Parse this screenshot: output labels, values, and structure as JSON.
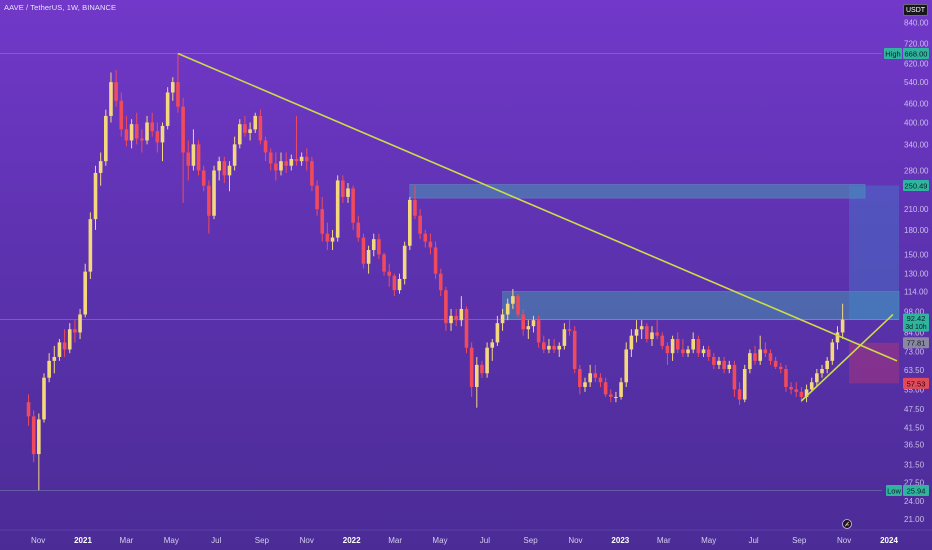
{
  "header": {
    "title": "AAVE / TetherUS, 1W, BINANCE",
    "currency": "USDT"
  },
  "chart_data": {
    "type": "candlestick",
    "symbol": "AAVE / TetherUS",
    "interval": "1W",
    "exchange": "BINANCE",
    "scale": "log",
    "y_ticks": [
      "840.00",
      "720.00",
      "620.00",
      "540.00",
      "460.00",
      "400.00",
      "340.00",
      "280.00",
      "250.00",
      "210.00",
      "180.00",
      "150.00",
      "130.00",
      "114.00",
      "98.00",
      "84.00",
      "73.00",
      "63.50",
      "55.00",
      "47.50",
      "41.50",
      "36.50",
      "31.50",
      "27.50",
      "24.00",
      "21.00"
    ],
    "x_ticks": [
      "Nov",
      "2021",
      "Mar",
      "May",
      "Jul",
      "Sep",
      "Nov",
      "2022",
      "Mar",
      "May",
      "Jul",
      "Sep",
      "Nov",
      "2023",
      "Mar",
      "May",
      "Jul",
      "Sep",
      "Nov",
      "2024"
    ],
    "year_ticks": [
      "2021",
      "2022",
      "2023",
      "2024"
    ],
    "price_labels": {
      "high": {
        "label": "High",
        "value": "668.00"
      },
      "low": {
        "label": "Low",
        "value": "25.94"
      },
      "current": {
        "value": "92.42",
        "countdown": "3d 10h"
      },
      "target": {
        "value": "250.49"
      },
      "marker": {
        "value": "77.81"
      },
      "stop": {
        "value": "57.53"
      }
    },
    "colors": {
      "up": "#f5d87e",
      "down": "#f04a5c",
      "trendline": "#cddc4a",
      "zone": "#3fb8b0",
      "target_zone": "#3c8fd0",
      "stop_zone": "#e03a5c"
    },
    "candles": [
      {
        "t": "2020-10-19",
        "o": 50,
        "h": 53,
        "l": 42,
        "c": 45
      },
      {
        "t": "2020-10-26",
        "o": 45,
        "h": 47,
        "l": 32,
        "c": 34
      },
      {
        "t": "2020-11-02",
        "o": 34,
        "h": 46,
        "l": 26,
        "c": 44
      },
      {
        "t": "2020-11-09",
        "o": 44,
        "h": 62,
        "l": 43,
        "c": 60
      },
      {
        "t": "2020-11-16",
        "o": 60,
        "h": 72,
        "l": 58,
        "c": 68
      },
      {
        "t": "2020-11-23",
        "o": 68,
        "h": 76,
        "l": 62,
        "c": 70
      },
      {
        "t": "2020-11-30",
        "o": 70,
        "h": 80,
        "l": 68,
        "c": 78
      },
      {
        "t": "2020-12-07",
        "o": 78,
        "h": 86,
        "l": 70,
        "c": 74
      },
      {
        "t": "2020-12-14",
        "o": 74,
        "h": 90,
        "l": 72,
        "c": 86
      },
      {
        "t": "2020-12-21",
        "o": 86,
        "h": 92,
        "l": 78,
        "c": 84
      },
      {
        "t": "2020-12-28",
        "o": 84,
        "h": 100,
        "l": 80,
        "c": 96
      },
      {
        "t": "2021-01-04",
        "o": 96,
        "h": 140,
        "l": 94,
        "c": 132
      },
      {
        "t": "2021-01-11",
        "o": 132,
        "h": 205,
        "l": 125,
        "c": 195
      },
      {
        "t": "2021-01-18",
        "o": 195,
        "h": 290,
        "l": 180,
        "c": 275
      },
      {
        "t": "2021-01-25",
        "o": 275,
        "h": 320,
        "l": 250,
        "c": 300
      },
      {
        "t": "2021-02-01",
        "o": 300,
        "h": 440,
        "l": 290,
        "c": 420
      },
      {
        "t": "2021-02-08",
        "o": 420,
        "h": 580,
        "l": 400,
        "c": 540
      },
      {
        "t": "2021-02-15",
        "o": 540,
        "h": 590,
        "l": 450,
        "c": 470
      },
      {
        "t": "2021-02-22",
        "o": 470,
        "h": 500,
        "l": 360,
        "c": 380
      },
      {
        "t": "2021-03-01",
        "o": 380,
        "h": 420,
        "l": 335,
        "c": 350
      },
      {
        "t": "2021-03-08",
        "o": 350,
        "h": 410,
        "l": 330,
        "c": 395
      },
      {
        "t": "2021-03-15",
        "o": 395,
        "h": 430,
        "l": 340,
        "c": 355
      },
      {
        "t": "2021-03-22",
        "o": 355,
        "h": 380,
        "l": 320,
        "c": 350
      },
      {
        "t": "2021-03-29",
        "o": 350,
        "h": 420,
        "l": 340,
        "c": 400
      },
      {
        "t": "2021-04-05",
        "o": 400,
        "h": 430,
        "l": 360,
        "c": 375
      },
      {
        "t": "2021-04-12",
        "o": 375,
        "h": 400,
        "l": 320,
        "c": 345
      },
      {
        "t": "2021-04-19",
        "o": 345,
        "h": 400,
        "l": 300,
        "c": 390
      },
      {
        "t": "2021-04-26",
        "o": 390,
        "h": 520,
        "l": 380,
        "c": 500
      },
      {
        "t": "2021-05-03",
        "o": 500,
        "h": 560,
        "l": 470,
        "c": 540
      },
      {
        "t": "2021-05-10",
        "o": 540,
        "h": 668,
        "l": 430,
        "c": 450
      },
      {
        "t": "2021-05-17",
        "o": 450,
        "h": 480,
        "l": 220,
        "c": 320
      },
      {
        "t": "2021-05-24",
        "o": 320,
        "h": 350,
        "l": 260,
        "c": 290
      },
      {
        "t": "2021-05-31",
        "o": 290,
        "h": 380,
        "l": 280,
        "c": 340
      },
      {
        "t": "2021-06-07",
        "o": 340,
        "h": 350,
        "l": 270,
        "c": 280
      },
      {
        "t": "2021-06-14",
        "o": 280,
        "h": 290,
        "l": 240,
        "c": 250
      },
      {
        "t": "2021-06-21",
        "o": 250,
        "h": 260,
        "l": 175,
        "c": 200
      },
      {
        "t": "2021-06-28",
        "o": 200,
        "h": 290,
        "l": 195,
        "c": 280
      },
      {
        "t": "2021-07-05",
        "o": 280,
        "h": 310,
        "l": 260,
        "c": 300
      },
      {
        "t": "2021-07-12",
        "o": 300,
        "h": 310,
        "l": 255,
        "c": 270
      },
      {
        "t": "2021-07-19",
        "o": 270,
        "h": 300,
        "l": 240,
        "c": 290
      },
      {
        "t": "2021-07-26",
        "o": 290,
        "h": 360,
        "l": 280,
        "c": 340
      },
      {
        "t": "2021-08-02",
        "o": 340,
        "h": 410,
        "l": 330,
        "c": 395
      },
      {
        "t": "2021-08-09",
        "o": 395,
        "h": 420,
        "l": 360,
        "c": 370
      },
      {
        "t": "2021-08-16",
        "o": 370,
        "h": 400,
        "l": 350,
        "c": 380
      },
      {
        "t": "2021-08-23",
        "o": 380,
        "h": 430,
        "l": 370,
        "c": 420
      },
      {
        "t": "2021-08-30",
        "o": 420,
        "h": 440,
        "l": 340,
        "c": 350
      },
      {
        "t": "2021-09-06",
        "o": 350,
        "h": 360,
        "l": 300,
        "c": 320
      },
      {
        "t": "2021-09-13",
        "o": 320,
        "h": 330,
        "l": 280,
        "c": 295
      },
      {
        "t": "2021-09-20",
        "o": 295,
        "h": 320,
        "l": 260,
        "c": 280
      },
      {
        "t": "2021-09-27",
        "o": 280,
        "h": 320,
        "l": 270,
        "c": 300
      },
      {
        "t": "2021-10-04",
        "o": 300,
        "h": 320,
        "l": 275,
        "c": 290
      },
      {
        "t": "2021-10-11",
        "o": 290,
        "h": 315,
        "l": 280,
        "c": 305
      },
      {
        "t": "2021-10-18",
        "o": 305,
        "h": 420,
        "l": 290,
        "c": 300
      },
      {
        "t": "2021-10-25",
        "o": 300,
        "h": 320,
        "l": 290,
        "c": 310
      },
      {
        "t": "2021-11-01",
        "o": 310,
        "h": 330,
        "l": 280,
        "c": 300
      },
      {
        "t": "2021-11-08",
        "o": 300,
        "h": 310,
        "l": 240,
        "c": 250
      },
      {
        "t": "2021-11-15",
        "o": 250,
        "h": 260,
        "l": 200,
        "c": 210
      },
      {
        "t": "2021-11-22",
        "o": 210,
        "h": 230,
        "l": 165,
        "c": 175
      },
      {
        "t": "2021-11-29",
        "o": 175,
        "h": 190,
        "l": 155,
        "c": 165
      },
      {
        "t": "2021-12-06",
        "o": 165,
        "h": 180,
        "l": 155,
        "c": 170
      },
      {
        "t": "2021-12-13",
        "o": 170,
        "h": 270,
        "l": 165,
        "c": 260
      },
      {
        "t": "2021-12-20",
        "o": 260,
        "h": 270,
        "l": 220,
        "c": 230
      },
      {
        "t": "2021-12-27",
        "o": 230,
        "h": 255,
        "l": 220,
        "c": 245
      },
      {
        "t": "2022-01-03",
        "o": 245,
        "h": 250,
        "l": 180,
        "c": 190
      },
      {
        "t": "2022-01-10",
        "o": 190,
        "h": 200,
        "l": 165,
        "c": 170
      },
      {
        "t": "2022-01-17",
        "o": 170,
        "h": 175,
        "l": 135,
        "c": 140
      },
      {
        "t": "2022-01-24",
        "o": 140,
        "h": 160,
        "l": 130,
        "c": 155
      },
      {
        "t": "2022-01-31",
        "o": 155,
        "h": 175,
        "l": 148,
        "c": 168
      },
      {
        "t": "2022-02-07",
        "o": 168,
        "h": 175,
        "l": 145,
        "c": 150
      },
      {
        "t": "2022-02-14",
        "o": 150,
        "h": 152,
        "l": 128,
        "c": 132
      },
      {
        "t": "2022-02-21",
        "o": 132,
        "h": 140,
        "l": 118,
        "c": 128
      },
      {
        "t": "2022-02-28",
        "o": 128,
        "h": 130,
        "l": 110,
        "c": 115
      },
      {
        "t": "2022-03-07",
        "o": 115,
        "h": 130,
        "l": 112,
        "c": 125
      },
      {
        "t": "2022-03-14",
        "o": 125,
        "h": 165,
        "l": 120,
        "c": 160
      },
      {
        "t": "2022-03-21",
        "o": 160,
        "h": 230,
        "l": 155,
        "c": 225
      },
      {
        "t": "2022-03-28",
        "o": 225,
        "h": 250,
        "l": 195,
        "c": 200
      },
      {
        "t": "2022-04-04",
        "o": 200,
        "h": 210,
        "l": 168,
        "c": 175
      },
      {
        "t": "2022-04-11",
        "o": 175,
        "h": 180,
        "l": 158,
        "c": 165
      },
      {
        "t": "2022-04-18",
        "o": 165,
        "h": 175,
        "l": 150,
        "c": 158
      },
      {
        "t": "2022-04-25",
        "o": 158,
        "h": 165,
        "l": 125,
        "c": 130
      },
      {
        "t": "2022-05-02",
        "o": 130,
        "h": 135,
        "l": 110,
        "c": 115
      },
      {
        "t": "2022-05-09",
        "o": 115,
        "h": 118,
        "l": 85,
        "c": 90
      },
      {
        "t": "2022-05-16",
        "o": 90,
        "h": 100,
        "l": 85,
        "c": 95
      },
      {
        "t": "2022-05-23",
        "o": 95,
        "h": 100,
        "l": 88,
        "c": 92
      },
      {
        "t": "2022-05-30",
        "o": 92,
        "h": 110,
        "l": 88,
        "c": 100
      },
      {
        "t": "2022-06-06",
        "o": 100,
        "h": 102,
        "l": 72,
        "c": 75
      },
      {
        "t": "2022-06-13",
        "o": 75,
        "h": 78,
        "l": 52,
        "c": 56
      },
      {
        "t": "2022-06-20",
        "o": 56,
        "h": 70,
        "l": 48,
        "c": 66
      },
      {
        "t": "2022-06-27",
        "o": 66,
        "h": 68,
        "l": 60,
        "c": 62
      },
      {
        "t": "2022-07-04",
        "o": 62,
        "h": 78,
        "l": 60,
        "c": 75
      },
      {
        "t": "2022-07-11",
        "o": 75,
        "h": 80,
        "l": 68,
        "c": 78
      },
      {
        "t": "2022-07-18",
        "o": 78,
        "h": 95,
        "l": 76,
        "c": 90
      },
      {
        "t": "2022-07-25",
        "o": 90,
        "h": 100,
        "l": 85,
        "c": 96
      },
      {
        "t": "2022-08-01",
        "o": 96,
        "h": 108,
        "l": 92,
        "c": 104
      },
      {
        "t": "2022-08-08",
        "o": 104,
        "h": 116,
        "l": 100,
        "c": 110
      },
      {
        "t": "2022-08-15",
        "o": 110,
        "h": 112,
        "l": 94,
        "c": 96
      },
      {
        "t": "2022-08-22",
        "o": 96,
        "h": 100,
        "l": 82,
        "c": 86
      },
      {
        "t": "2022-08-29",
        "o": 86,
        "h": 92,
        "l": 80,
        "c": 88
      },
      {
        "t": "2022-09-05",
        "o": 88,
        "h": 95,
        "l": 84,
        "c": 92
      },
      {
        "t": "2022-09-12",
        "o": 92,
        "h": 95,
        "l": 75,
        "c": 78
      },
      {
        "t": "2022-09-19",
        "o": 78,
        "h": 82,
        "l": 72,
        "c": 74
      },
      {
        "t": "2022-09-26",
        "o": 74,
        "h": 80,
        "l": 72,
        "c": 76
      },
      {
        "t": "2022-10-03",
        "o": 76,
        "h": 80,
        "l": 72,
        "c": 74
      },
      {
        "t": "2022-10-10",
        "o": 74,
        "h": 78,
        "l": 70,
        "c": 76
      },
      {
        "t": "2022-10-17",
        "o": 76,
        "h": 90,
        "l": 74,
        "c": 86
      },
      {
        "t": "2022-10-24",
        "o": 86,
        "h": 92,
        "l": 82,
        "c": 85
      },
      {
        "t": "2022-10-31",
        "o": 85,
        "h": 88,
        "l": 62,
        "c": 64
      },
      {
        "t": "2022-11-07",
        "o": 64,
        "h": 66,
        "l": 53,
        "c": 56
      },
      {
        "t": "2022-11-14",
        "o": 56,
        "h": 60,
        "l": 54,
        "c": 58
      },
      {
        "t": "2022-11-21",
        "o": 58,
        "h": 66,
        "l": 56,
        "c": 62
      },
      {
        "t": "2022-11-28",
        "o": 62,
        "h": 66,
        "l": 58,
        "c": 60
      },
      {
        "t": "2022-12-05",
        "o": 60,
        "h": 62,
        "l": 56,
        "c": 58
      },
      {
        "t": "2022-12-12",
        "o": 58,
        "h": 60,
        "l": 52,
        "c": 53
      },
      {
        "t": "2022-12-19",
        "o": 53,
        "h": 55,
        "l": 50,
        "c": 52
      },
      {
        "t": "2022-12-26",
        "o": 52,
        "h": 54,
        "l": 50,
        "c": 52
      },
      {
        "t": "2023-01-02",
        "o": 52,
        "h": 60,
        "l": 51,
        "c": 58
      },
      {
        "t": "2023-01-09",
        "o": 58,
        "h": 78,
        "l": 56,
        "c": 74
      },
      {
        "t": "2023-01-16",
        "o": 74,
        "h": 86,
        "l": 70,
        "c": 82
      },
      {
        "t": "2023-01-23",
        "o": 82,
        "h": 92,
        "l": 78,
        "c": 86
      },
      {
        "t": "2023-01-30",
        "o": 86,
        "h": 92,
        "l": 80,
        "c": 88
      },
      {
        "t": "2023-02-06",
        "o": 88,
        "h": 90,
        "l": 78,
        "c": 80
      },
      {
        "t": "2023-02-13",
        "o": 80,
        "h": 88,
        "l": 76,
        "c": 84
      },
      {
        "t": "2023-02-20",
        "o": 84,
        "h": 92,
        "l": 80,
        "c": 82
      },
      {
        "t": "2023-02-27",
        "o": 82,
        "h": 84,
        "l": 74,
        "c": 76
      },
      {
        "t": "2023-03-06",
        "o": 76,
        "h": 78,
        "l": 66,
        "c": 72
      },
      {
        "t": "2023-03-13",
        "o": 72,
        "h": 82,
        "l": 68,
        "c": 80
      },
      {
        "t": "2023-03-20",
        "o": 80,
        "h": 84,
        "l": 72,
        "c": 74
      },
      {
        "t": "2023-03-27",
        "o": 74,
        "h": 80,
        "l": 70,
        "c": 72
      },
      {
        "t": "2023-04-03",
        "o": 72,
        "h": 76,
        "l": 70,
        "c": 74
      },
      {
        "t": "2023-04-10",
        "o": 74,
        "h": 84,
        "l": 72,
        "c": 80
      },
      {
        "t": "2023-04-17",
        "o": 80,
        "h": 82,
        "l": 70,
        "c": 72
      },
      {
        "t": "2023-04-24",
        "o": 72,
        "h": 76,
        "l": 70,
        "c": 74
      },
      {
        "t": "2023-05-01",
        "o": 74,
        "h": 76,
        "l": 68,
        "c": 70
      },
      {
        "t": "2023-05-08",
        "o": 70,
        "h": 72,
        "l": 64,
        "c": 66
      },
      {
        "t": "2023-05-15",
        "o": 66,
        "h": 70,
        "l": 64,
        "c": 68
      },
      {
        "t": "2023-05-22",
        "o": 68,
        "h": 70,
        "l": 62,
        "c": 64
      },
      {
        "t": "2023-05-29",
        "o": 64,
        "h": 68,
        "l": 62,
        "c": 66
      },
      {
        "t": "2023-06-05",
        "o": 66,
        "h": 68,
        "l": 52,
        "c": 55
      },
      {
        "t": "2023-06-12",
        "o": 55,
        "h": 58,
        "l": 49,
        "c": 51
      },
      {
        "t": "2023-06-19",
        "o": 51,
        "h": 66,
        "l": 50,
        "c": 64
      },
      {
        "t": "2023-06-26",
        "o": 64,
        "h": 74,
        "l": 62,
        "c": 72
      },
      {
        "t": "2023-07-03",
        "o": 72,
        "h": 76,
        "l": 66,
        "c": 68
      },
      {
        "t": "2023-07-10",
        "o": 68,
        "h": 82,
        "l": 66,
        "c": 74
      },
      {
        "t": "2023-07-17",
        "o": 74,
        "h": 78,
        "l": 70,
        "c": 72
      },
      {
        "t": "2023-07-24",
        "o": 72,
        "h": 74,
        "l": 66,
        "c": 68
      },
      {
        "t": "2023-07-31",
        "o": 68,
        "h": 70,
        "l": 64,
        "c": 65
      },
      {
        "t": "2023-08-07",
        "o": 65,
        "h": 67,
        "l": 62,
        "c": 64
      },
      {
        "t": "2023-08-14",
        "o": 64,
        "h": 66,
        "l": 54,
        "c": 56
      },
      {
        "t": "2023-08-21",
        "o": 56,
        "h": 58,
        "l": 53,
        "c": 55
      },
      {
        "t": "2023-08-28",
        "o": 55,
        "h": 58,
        "l": 52,
        "c": 54
      },
      {
        "t": "2023-09-04",
        "o": 54,
        "h": 56,
        "l": 50,
        "c": 52
      },
      {
        "t": "2023-09-11",
        "o": 52,
        "h": 57,
        "l": 50,
        "c": 55
      },
      {
        "t": "2023-09-18",
        "o": 55,
        "h": 60,
        "l": 54,
        "c": 58
      },
      {
        "t": "2023-09-25",
        "o": 58,
        "h": 64,
        "l": 56,
        "c": 62
      },
      {
        "t": "2023-10-02",
        "o": 62,
        "h": 66,
        "l": 60,
        "c": 64
      },
      {
        "t": "2023-10-09",
        "o": 64,
        "h": 70,
        "l": 62,
        "c": 68
      },
      {
        "t": "2023-10-16",
        "o": 68,
        "h": 80,
        "l": 66,
        "c": 78
      },
      {
        "t": "2023-10-23",
        "o": 78,
        "h": 88,
        "l": 74,
        "c": 84
      },
      {
        "t": "2023-10-30",
        "o": 84,
        "h": 104,
        "l": 80,
        "c": 92.42
      }
    ]
  }
}
